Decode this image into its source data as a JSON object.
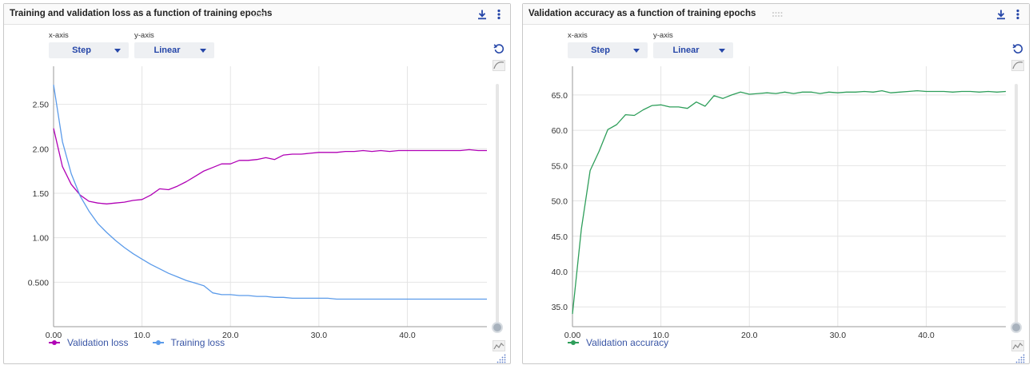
{
  "panels": [
    {
      "title": "Training and validation loss as a function of training epochs",
      "xaxis_label": "x-axis",
      "xaxis_value": "Step",
      "yaxis_label": "y-axis",
      "yaxis_value": "Linear"
    },
    {
      "title": "Validation accuracy as a function of training epochs",
      "xaxis_label": "x-axis",
      "xaxis_value": "Step",
      "yaxis_label": "y-axis",
      "yaxis_value": "Linear"
    }
  ],
  "icons": [
    "drag-handle-icon",
    "download-icon",
    "more-vert-icon",
    "reset-icon",
    "smoothing-icon",
    "chart-mode-icon",
    "resize-icon"
  ],
  "chart_data": [
    {
      "type": "line",
      "title": "Training and validation loss as a function of training epochs",
      "xlim": [
        0,
        49
      ],
      "ylim": [
        0,
        2.82
      ],
      "xticks": [
        0,
        10,
        20,
        30,
        40
      ],
      "xtick_labels": [
        "0.00",
        "10.0",
        "20.0",
        "30.0",
        "40.0"
      ],
      "yticks": [
        0.5,
        1.0,
        1.5,
        2.0,
        2.5
      ],
      "ytick_labels": [
        "0.500",
        "1.00",
        "1.50",
        "2.00",
        "2.50"
      ],
      "grid": true,
      "legend_position": "bottom-left",
      "x": [
        0,
        1,
        2,
        3,
        4,
        5,
        6,
        7,
        8,
        9,
        10,
        11,
        12,
        13,
        14,
        15,
        16,
        17,
        18,
        19,
        20,
        21,
        22,
        23,
        24,
        25,
        26,
        27,
        28,
        29,
        30,
        31,
        32,
        33,
        34,
        35,
        36,
        37,
        38,
        39,
        40,
        41,
        42,
        43,
        44,
        45,
        46,
        47,
        48,
        49
      ],
      "series": [
        {
          "name": "Validation loss",
          "color": "#b000b5",
          "values": [
            2.23,
            1.8,
            1.6,
            1.48,
            1.41,
            1.39,
            1.38,
            1.39,
            1.4,
            1.42,
            1.43,
            1.48,
            1.55,
            1.54,
            1.58,
            1.63,
            1.69,
            1.75,
            1.79,
            1.83,
            1.83,
            1.87,
            1.87,
            1.88,
            1.9,
            1.88,
            1.93,
            1.94,
            1.94,
            1.95,
            1.96,
            1.96,
            1.96,
            1.97,
            1.97,
            1.98,
            1.97,
            1.98,
            1.97,
            1.98,
            1.98,
            1.98,
            1.98,
            1.98,
            1.98,
            1.98,
            1.98,
            1.99,
            1.98,
            1.98
          ]
        },
        {
          "name": "Training loss",
          "color": "#5b9bea",
          "values": [
            2.72,
            2.08,
            1.72,
            1.47,
            1.3,
            1.16,
            1.06,
            0.97,
            0.89,
            0.82,
            0.76,
            0.7,
            0.65,
            0.6,
            0.56,
            0.52,
            0.49,
            0.46,
            0.38,
            0.36,
            0.36,
            0.35,
            0.35,
            0.34,
            0.34,
            0.33,
            0.33,
            0.32,
            0.32,
            0.32,
            0.32,
            0.32,
            0.31,
            0.31,
            0.31,
            0.31,
            0.31,
            0.31,
            0.31,
            0.31,
            0.31,
            0.31,
            0.31,
            0.31,
            0.31,
            0.31,
            0.31,
            0.31,
            0.31,
            0.31
          ]
        }
      ]
    },
    {
      "type": "line",
      "title": "Validation accuracy as a function of training epochs",
      "xlim": [
        0,
        49
      ],
      "ylim": [
        32.2,
        67.7
      ],
      "xticks": [
        0,
        10,
        20,
        30,
        40
      ],
      "xtick_labels": [
        "0.00",
        "10.0",
        "20.0",
        "30.0",
        "40.0"
      ],
      "yticks": [
        35,
        40,
        45,
        50,
        55,
        60,
        65
      ],
      "ytick_labels": [
        "35.0",
        "40.0",
        "45.0",
        "50.0",
        "55.0",
        "60.0",
        "65.0"
      ],
      "grid": true,
      "legend_position": "bottom-left",
      "x": [
        0,
        1,
        2,
        3,
        4,
        5,
        6,
        7,
        8,
        9,
        10,
        11,
        12,
        13,
        14,
        15,
        16,
        17,
        18,
        19,
        20,
        21,
        22,
        23,
        24,
        25,
        26,
        27,
        28,
        29,
        30,
        31,
        32,
        33,
        34,
        35,
        36,
        37,
        38,
        39,
        40,
        41,
        42,
        43,
        44,
        45,
        46,
        47,
        48,
        49
      ],
      "series": [
        {
          "name": "Validation accuracy",
          "color": "#2e9e5a",
          "values": [
            34.0,
            46.0,
            54.3,
            57.0,
            60.1,
            60.8,
            62.2,
            62.1,
            62.9,
            63.5,
            63.6,
            63.3,
            63.3,
            63.1,
            64.0,
            63.4,
            64.9,
            64.5,
            65.0,
            65.4,
            65.1,
            65.2,
            65.3,
            65.2,
            65.4,
            65.2,
            65.4,
            65.4,
            65.2,
            65.4,
            65.3,
            65.4,
            65.4,
            65.5,
            65.4,
            65.6,
            65.3,
            65.4,
            65.5,
            65.6,
            65.5,
            65.5,
            65.5,
            65.4,
            65.5,
            65.5,
            65.4,
            65.5,
            65.4,
            65.5
          ]
        }
      ]
    }
  ]
}
